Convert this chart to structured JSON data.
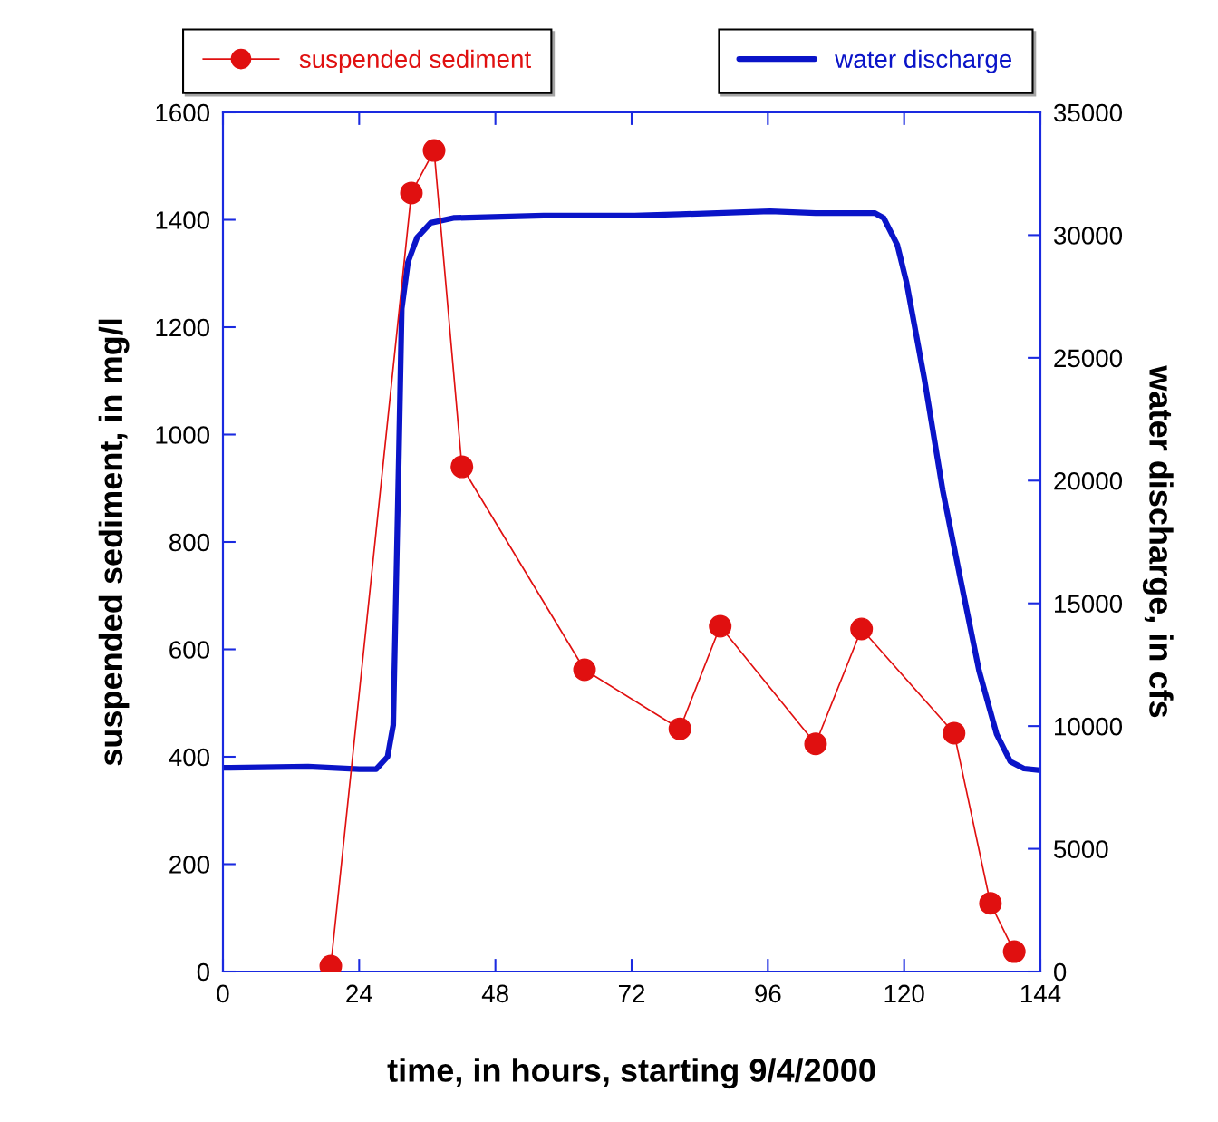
{
  "chart_data": {
    "type": "line",
    "xlabel": "time, in hours, starting 9/4/2000",
    "ylabel": "suspended sediment, in mg/l",
    "y2label": "water discharge, in cfs",
    "xlim": [
      0,
      144
    ],
    "xticks": [
      0,
      24,
      48,
      72,
      96,
      120,
      144
    ],
    "ylim": [
      0,
      1600
    ],
    "yticks": [
      0,
      200,
      400,
      600,
      800,
      1000,
      1200,
      1400,
      1600
    ],
    "y2lim": [
      0,
      35000
    ],
    "y2ticks": [
      0,
      5000,
      10000,
      15000,
      20000,
      25000,
      30000,
      35000
    ],
    "legend": "top",
    "grid": false,
    "series": [
      {
        "name": "suspended sediment",
        "color": "#e01010",
        "marker": "circle",
        "x": [
          19.0,
          33.2,
          37.2,
          42.1,
          63.7,
          80.5,
          87.6,
          104.4,
          112.5,
          128.8,
          135.2,
          139.4
        ],
        "values": [
          10,
          1450,
          1529,
          940,
          562,
          452,
          643,
          424,
          638,
          444,
          127,
          37
        ]
      },
      {
        "name": "water discharge",
        "color": "#0a14c8",
        "axis": "y2",
        "x": [
          0,
          15,
          24,
          27,
          29,
          30,
          31,
          31.5,
          32.6,
          34.2,
          36.6,
          40.6,
          56.5,
          72.5,
          80.5,
          96.4,
          104.4,
          114.8,
          116.4,
          118.8,
          120.4,
          123.6,
          126.8,
          130,
          133.2,
          136.3,
          138.7,
          141.1,
          144
        ],
        "values": [
          8300,
          8350,
          8250,
          8250,
          8750,
          10040,
          21100,
          27000,
          28900,
          29900,
          30500,
          30700,
          30800,
          30800,
          30850,
          30970,
          30900,
          30900,
          30700,
          29600,
          28100,
          24100,
          19600,
          15900,
          12250,
          9670,
          8560,
          8270,
          8200
        ]
      }
    ]
  }
}
